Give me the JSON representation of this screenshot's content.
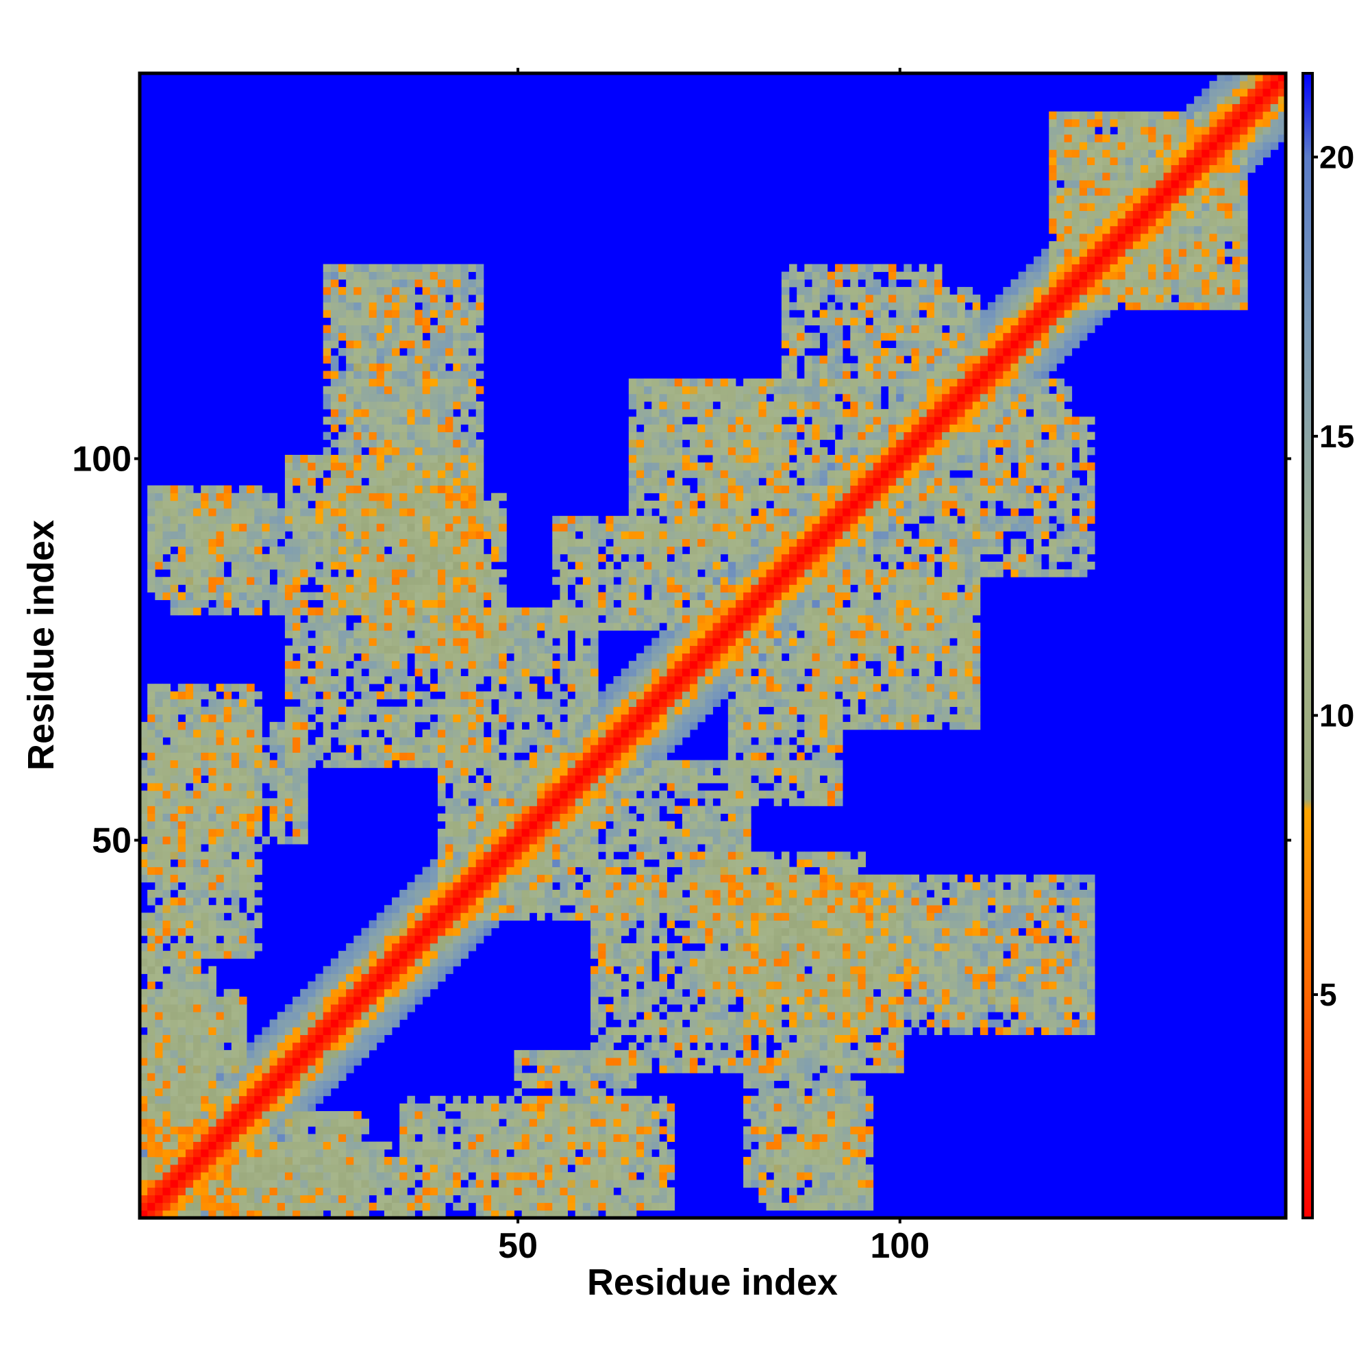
{
  "chart_data": {
    "type": "heatmap",
    "title": "",
    "xlabel": "Residue index",
    "ylabel": "Residue index",
    "x_range": [
      1,
      150
    ],
    "y_range": [
      1,
      150
    ],
    "x_ticks": [
      50,
      100
    ],
    "y_ticks": [
      50,
      100
    ],
    "grid": false,
    "colorbar": {
      "position": "right",
      "range": [
        1,
        21.5
      ],
      "ticks": [
        5,
        10,
        15,
        20
      ],
      "stops": [
        {
          "value": 1,
          "color": "#ff0000"
        },
        {
          "value": 5,
          "color": "#ff6600"
        },
        {
          "value": 8.3,
          "color": "#ffa500"
        },
        {
          "value": 8.5,
          "color": "#9aa87c"
        },
        {
          "value": 12,
          "color": "#a6b58a"
        },
        {
          "value": 17,
          "color": "#7a9ab8"
        },
        {
          "value": 20,
          "color": "#5b7cc8"
        },
        {
          "value": 21.5,
          "color": "#0000ff"
        }
      ]
    },
    "background_value": 21.5,
    "diagonal_band_halfwidth": 2,
    "contact_blocks": [
      {
        "x": [
          1,
          12
        ],
        "y": [
          1,
          12
        ],
        "value": 8
      },
      {
        "x": [
          1,
          10
        ],
        "y": [
          12,
          40
        ],
        "value": 11
      },
      {
        "x": [
          12,
          30
        ],
        "y": [
          1,
          14
        ],
        "value": 11
      },
      {
        "x": [
          1,
          15
        ],
        "y": [
          45,
          65
        ],
        "value": 12
      },
      {
        "x": [
          2,
          16
        ],
        "y": [
          82,
          96
        ],
        "value": 12
      },
      {
        "x": [
          20,
          45
        ],
        "y": [
          60,
          100
        ],
        "value": 12
      },
      {
        "x": [
          25,
          42
        ],
        "y": [
          100,
          125
        ],
        "value": 14
      },
      {
        "x": [
          35,
          70
        ],
        "y": [
          2,
          16
        ],
        "value": 12
      },
      {
        "x": [
          50,
          65
        ],
        "y": [
          10,
          22
        ],
        "value": 13
      },
      {
        "x": [
          45,
          80
        ],
        "y": [
          40,
          60
        ],
        "value": 12
      },
      {
        "x": [
          55,
          80
        ],
        "y": [
          78,
          92
        ],
        "value": 12
      },
      {
        "x": [
          65,
          85
        ],
        "y": [
          88,
          110
        ],
        "value": 12
      },
      {
        "x": [
          75,
          95
        ],
        "y": [
          30,
          48
        ],
        "value": 11
      },
      {
        "x": [
          80,
          100
        ],
        "y": [
          25,
          45
        ],
        "value": 10
      },
      {
        "x": [
          80,
          95
        ],
        "y": [
          5,
          22
        ],
        "value": 13
      },
      {
        "x": [
          90,
          110
        ],
        "y": [
          75,
          95
        ],
        "value": 12
      },
      {
        "x": [
          95,
          110
        ],
        "y": [
          100,
          122
        ],
        "value": 13
      },
      {
        "x": [
          100,
          125
        ],
        "y": [
          28,
          45
        ],
        "value": 13
      },
      {
        "x": [
          110,
          125
        ],
        "y": [
          85,
          105
        ],
        "value": 13
      },
      {
        "x": [
          120,
          145
        ],
        "y": [
          120,
          145
        ],
        "value": 12
      }
    ]
  }
}
